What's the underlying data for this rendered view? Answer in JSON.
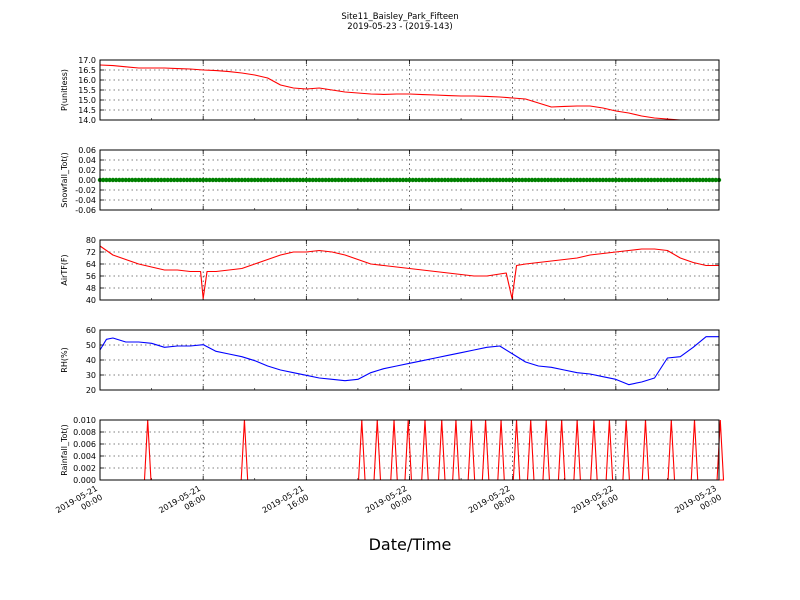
{
  "chart_data": {
    "type": "line",
    "title": "Site11_Baisley_Park_Fifteen",
    "subtitle": "2019-05-23 - (2019-143)",
    "xlabel": "Date/Time",
    "x_ticks": [
      {
        "line1": "2019-05-21",
        "line2": "00:00"
      },
      {
        "line1": "2019-05-21",
        "line2": "08:00"
      },
      {
        "line1": "2019-05-21",
        "line2": "16:00"
      },
      {
        "line1": "2019-05-22",
        "line2": "00:00"
      },
      {
        "line1": "2019-05-22",
        "line2": "08:00"
      },
      {
        "line1": "2019-05-22",
        "line2": "16:00"
      },
      {
        "line1": "2019-05-23",
        "line2": "00:00"
      }
    ],
    "x_start": "2019-05-21 00:00",
    "x_end": "2019-05-23 00:00",
    "grid": true,
    "panels": [
      {
        "ylabel": "P(unitless)",
        "ylim": [
          14.0,
          17.0
        ],
        "yticks": [
          "17.0",
          "16.5",
          "16.0",
          "15.5",
          "15.0",
          "14.5",
          "14.0"
        ],
        "color": "#ff0000",
        "style": "line",
        "series": [
          {
            "t": 0,
            "v": 16.75
          },
          {
            "t": 1,
            "v": 16.72
          },
          {
            "t": 2,
            "v": 16.66
          },
          {
            "t": 3,
            "v": 16.6
          },
          {
            "t": 4,
            "v": 16.6
          },
          {
            "t": 5,
            "v": 16.6
          },
          {
            "t": 6,
            "v": 16.57
          },
          {
            "t": 7,
            "v": 16.55
          },
          {
            "t": 8,
            "v": 16.5
          },
          {
            "t": 9,
            "v": 16.47
          },
          {
            "t": 10,
            "v": 16.42
          },
          {
            "t": 11,
            "v": 16.35
          },
          {
            "t": 12,
            "v": 16.25
          },
          {
            "t": 13,
            "v": 16.1
          },
          {
            "t": 14,
            "v": 15.75
          },
          {
            "t": 15,
            "v": 15.6
          },
          {
            "t": 16,
            "v": 15.55
          },
          {
            "t": 17,
            "v": 15.6
          },
          {
            "t": 18,
            "v": 15.5
          },
          {
            "t": 19,
            "v": 15.4
          },
          {
            "t": 20,
            "v": 15.35
          },
          {
            "t": 21,
            "v": 15.3
          },
          {
            "t": 22,
            "v": 15.28
          },
          {
            "t": 23,
            "v": 15.3
          },
          {
            "t": 24,
            "v": 15.3
          },
          {
            "t": 25,
            "v": 15.27
          },
          {
            "t": 26,
            "v": 15.25
          },
          {
            "t": 27,
            "v": 15.22
          },
          {
            "t": 28,
            "v": 15.2
          },
          {
            "t": 29,
            "v": 15.2
          },
          {
            "t": 30,
            "v": 15.18
          },
          {
            "t": 31,
            "v": 15.15
          },
          {
            "t": 32,
            "v": 15.1
          },
          {
            "t": 33,
            "v": 15.05
          },
          {
            "t": 34,
            "v": 14.85
          },
          {
            "t": 35,
            "v": 14.65
          },
          {
            "t": 36,
            "v": 14.68
          },
          {
            "t": 37,
            "v": 14.7
          },
          {
            "t": 38,
            "v": 14.7
          },
          {
            "t": 39,
            "v": 14.6
          },
          {
            "t": 40,
            "v": 14.45
          },
          {
            "t": 41,
            "v": 14.35
          },
          {
            "t": 42,
            "v": 14.2
          },
          {
            "t": 43,
            "v": 14.1
          },
          {
            "t": 44,
            "v": 14.05
          },
          {
            "t": 45,
            "v": 14.0
          },
          {
            "t": 46,
            "v": 14.0
          },
          {
            "t": 47,
            "v": 14.0
          },
          {
            "t": 48,
            "v": 14.0
          }
        ]
      },
      {
        "ylabel": "Snowfall_Tot()",
        "ylim": [
          -0.06,
          0.06
        ],
        "yticks": [
          "0.06",
          "0.04",
          "0.02",
          "0.00",
          "-0.02",
          "-0.04",
          "-0.06"
        ],
        "color": "#008000",
        "style": "dots",
        "constant_value": 0.0
      },
      {
        "ylabel": "AirTF(F)",
        "ylim": [
          40,
          80
        ],
        "yticks": [
          "80",
          "72",
          "64",
          "56",
          "48",
          "40"
        ],
        "color": "#ff0000",
        "style": "line",
        "series": [
          {
            "t": 0,
            "v": 76
          },
          {
            "t": 1,
            "v": 70
          },
          {
            "t": 2,
            "v": 67
          },
          {
            "t": 3,
            "v": 64
          },
          {
            "t": 4,
            "v": 62
          },
          {
            "t": 5,
            "v": 60
          },
          {
            "t": 6,
            "v": 60
          },
          {
            "t": 7,
            "v": 59
          },
          {
            "t": 7.8,
            "v": 59
          },
          {
            "t": 8.0,
            "v": 41
          },
          {
            "t": 8.3,
            "v": 59
          },
          {
            "t": 9,
            "v": 59
          },
          {
            "t": 10,
            "v": 60
          },
          {
            "t": 11,
            "v": 61
          },
          {
            "t": 12,
            "v": 64
          },
          {
            "t": 13,
            "v": 67
          },
          {
            "t": 14,
            "v": 70
          },
          {
            "t": 15,
            "v": 72
          },
          {
            "t": 16,
            "v": 72
          },
          {
            "t": 17,
            "v": 73
          },
          {
            "t": 18,
            "v": 72
          },
          {
            "t": 19,
            "v": 70
          },
          {
            "t": 20,
            "v": 67
          },
          {
            "t": 21,
            "v": 64
          },
          {
            "t": 22,
            "v": 63
          },
          {
            "t": 23,
            "v": 62
          },
          {
            "t": 24,
            "v": 61
          },
          {
            "t": 25,
            "v": 60
          },
          {
            "t": 26,
            "v": 59
          },
          {
            "t": 27,
            "v": 58
          },
          {
            "t": 28,
            "v": 57
          },
          {
            "t": 29,
            "v": 56
          },
          {
            "t": 30,
            "v": 56
          },
          {
            "t": 31.5,
            "v": 58
          },
          {
            "t": 31.95,
            "v": 41
          },
          {
            "t": 32.3,
            "v": 63
          },
          {
            "t": 33,
            "v": 64
          },
          {
            "t": 34,
            "v": 65
          },
          {
            "t": 35,
            "v": 66
          },
          {
            "t": 36,
            "v": 67
          },
          {
            "t": 37,
            "v": 68
          },
          {
            "t": 38,
            "v": 70
          },
          {
            "t": 39,
            "v": 71
          },
          {
            "t": 40,
            "v": 72
          },
          {
            "t": 41,
            "v": 73
          },
          {
            "t": 42,
            "v": 74
          },
          {
            "t": 43,
            "v": 74
          },
          {
            "t": 44,
            "v": 73
          },
          {
            "t": 45,
            "v": 68
          },
          {
            "t": 46,
            "v": 65
          },
          {
            "t": 47,
            "v": 63
          },
          {
            "t": 48,
            "v": 63
          }
        ]
      },
      {
        "ylabel": "RH(%)",
        "ylim": [
          15,
          60
        ],
        "yticks": [
          "60",
          "50",
          "40",
          "30",
          "20"
        ],
        "color": "#0000ff",
        "style": "line",
        "series": [
          {
            "t": 0,
            "v": 45
          },
          {
            "t": 0.5,
            "v": 53
          },
          {
            "t": 1,
            "v": 54
          },
          {
            "t": 2,
            "v": 51
          },
          {
            "t": 3,
            "v": 51
          },
          {
            "t": 4,
            "v": 50
          },
          {
            "t": 5,
            "v": 47
          },
          {
            "t": 6,
            "v": 48
          },
          {
            "t": 7,
            "v": 48
          },
          {
            "t": 8,
            "v": 49
          },
          {
            "t": 9,
            "v": 44
          },
          {
            "t": 10,
            "v": 42
          },
          {
            "t": 11,
            "v": 40
          },
          {
            "t": 12,
            "v": 37
          },
          {
            "t": 13,
            "v": 33
          },
          {
            "t": 14,
            "v": 30
          },
          {
            "t": 15,
            "v": 28
          },
          {
            "t": 16,
            "v": 26
          },
          {
            "t": 17,
            "v": 24
          },
          {
            "t": 18,
            "v": 23
          },
          {
            "t": 19,
            "v": 22
          },
          {
            "t": 20,
            "v": 23
          },
          {
            "t": 21,
            "v": 28
          },
          {
            "t": 22,
            "v": 31
          },
          {
            "t": 23,
            "v": 33
          },
          {
            "t": 24,
            "v": 35
          },
          {
            "t": 25,
            "v": 37
          },
          {
            "t": 26,
            "v": 39
          },
          {
            "t": 27,
            "v": 41
          },
          {
            "t": 28,
            "v": 43
          },
          {
            "t": 29,
            "v": 45
          },
          {
            "t": 30,
            "v": 47
          },
          {
            "t": 31,
            "v": 48
          },
          {
            "t": 32,
            "v": 42
          },
          {
            "t": 33,
            "v": 36
          },
          {
            "t": 34,
            "v": 33
          },
          {
            "t": 35,
            "v": 32
          },
          {
            "t": 36,
            "v": 30
          },
          {
            "t": 37,
            "v": 28
          },
          {
            "t": 38,
            "v": 27
          },
          {
            "t": 39,
            "v": 25
          },
          {
            "t": 40,
            "v": 23
          },
          {
            "t": 41,
            "v": 19
          },
          {
            "t": 42,
            "v": 21
          },
          {
            "t": 43,
            "v": 24
          },
          {
            "t": 44,
            "v": 39
          },
          {
            "t": 45,
            "v": 40
          },
          {
            "t": 46,
            "v": 47
          },
          {
            "t": 47,
            "v": 55
          },
          {
            "t": 48,
            "v": 55
          }
        ]
      },
      {
        "ylabel": "Rainfall_Tot()",
        "ylim": [
          0.0,
          0.01
        ],
        "yticks": [
          "0.010",
          "0.008",
          "0.006",
          "0.004",
          "0.002",
          "0.000"
        ],
        "color": "#ff0000",
        "style": "spikes",
        "spike_value": 0.01,
        "spike_times": [
          3.7,
          11.2,
          20.3,
          21.5,
          22.8,
          23.9,
          25.2,
          26.5,
          27.6,
          28.8,
          29.9,
          31.1,
          32.3,
          33.4,
          34.6,
          35.8,
          37.0,
          38.3,
          39.5,
          40.8,
          42.3,
          44.3,
          46.1,
          48.1
        ]
      }
    ]
  }
}
